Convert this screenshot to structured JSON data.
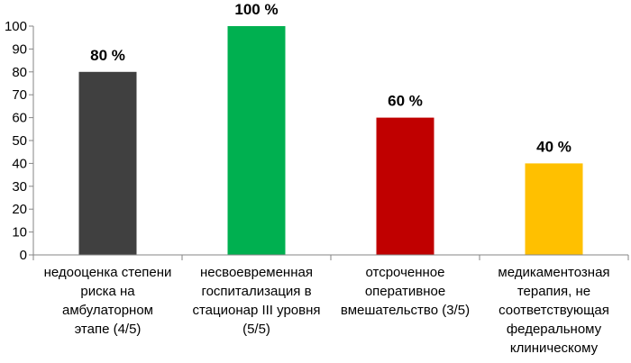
{
  "chart_data": {
    "type": "bar",
    "title": "",
    "xlabel": "",
    "ylabel": "",
    "ylim": [
      0,
      100
    ],
    "yticks": [
      0,
      10,
      20,
      30,
      40,
      50,
      60,
      70,
      80,
      90,
      100
    ],
    "grid": false,
    "legend": "none",
    "categories": [
      [
        "недооценка степени",
        "риска на",
        "амбулаторном",
        "этапе (4/5)"
      ],
      [
        "несвоевременная",
        "госпитализация в",
        "стационар III уровня",
        "(5/5)"
      ],
      [
        "отсроченное",
        "оперативное",
        "вмешательство (3/5)"
      ],
      [
        "медикаментозная",
        "терапия, не",
        "соответствующая",
        "федеральному",
        "клиническому"
      ]
    ],
    "values": [
      80,
      100,
      60,
      40
    ],
    "data_labels": [
      "80 %",
      "100 %",
      "60 %",
      "40 %"
    ],
    "colors": [
      "#404040",
      "#00b050",
      "#c00000",
      "#ffc000"
    ]
  }
}
